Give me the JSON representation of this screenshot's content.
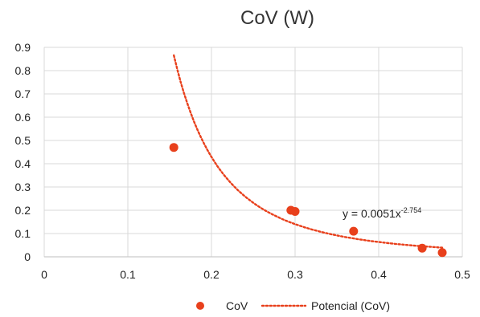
{
  "chart_data": {
    "type": "scatter",
    "title": "CoV (W)",
    "xlabel": "",
    "ylabel": "",
    "xlim": [
      0,
      0.5
    ],
    "ylim": [
      0,
      0.9
    ],
    "xticks": [
      "0",
      "0.1",
      "0.2",
      "0.3",
      "0.4",
      "0.5"
    ],
    "yticks": [
      "0",
      "0.1",
      "0.2",
      "0.3",
      "0.4",
      "0.5",
      "0.6",
      "0.7",
      "0.8",
      "0.9"
    ],
    "grid": true,
    "legend_position": "bottom",
    "series": [
      {
        "name": "CoV",
        "marker": "circle",
        "color": "#e8401c",
        "x": [
          0.155,
          0.295,
          0.3,
          0.37,
          0.452,
          0.476
        ],
        "y": [
          0.47,
          0.2,
          0.195,
          0.11,
          0.037,
          0.018
        ]
      }
    ],
    "trendline": {
      "name": "Potencial (CoV)",
      "type": "power",
      "a": 0.0051,
      "b": -2.754,
      "x_range": [
        0.155,
        0.476
      ],
      "color": "#e8401c",
      "style": "dotted",
      "equation_base": "y = 0.0051x",
      "equation_exponent": "-2.754"
    }
  }
}
